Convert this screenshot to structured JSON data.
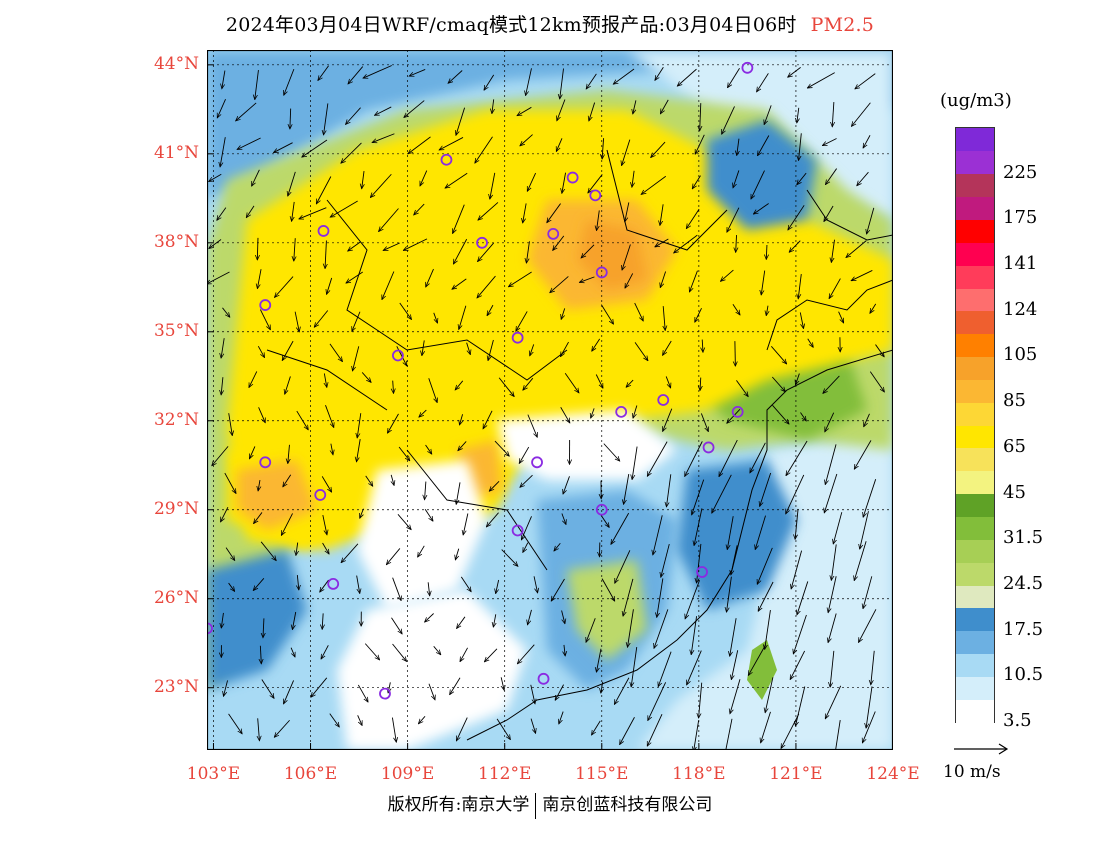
{
  "title": "2024年03月04日WRF/cmaq模式12km预报产品:03月04日06时",
  "pollutant": "PM2.5",
  "legend": {
    "unit": "(ug/m3)",
    "bins": [
      {
        "color": "#ffffff",
        "label": "3.5"
      },
      {
        "color": "#d4eefa",
        "label": ""
      },
      {
        "color": "#a8daf4",
        "label": "10.5"
      },
      {
        "color": "#6cb0e2",
        "label": ""
      },
      {
        "color": "#3f8ecc",
        "label": "17.5"
      },
      {
        "color": "#dfe9bf",
        "label": ""
      },
      {
        "color": "#bcd96a",
        "label": "24.5"
      },
      {
        "color": "#a7cf55",
        "label": ""
      },
      {
        "color": "#82be3a",
        "label": "31.5"
      },
      {
        "color": "#5fa226",
        "label": ""
      },
      {
        "color": "#f3f380",
        "label": "45"
      },
      {
        "color": "#f7e25a",
        "label": ""
      },
      {
        "color": "#ffe600",
        "label": "65"
      },
      {
        "color": "#fdd735",
        "label": ""
      },
      {
        "color": "#fbb733",
        "label": "85"
      },
      {
        "color": "#f7a22a",
        "label": ""
      },
      {
        "color": "#ff8000",
        "label": "105"
      },
      {
        "color": "#ef5f2f",
        "label": ""
      },
      {
        "color": "#fe6e6e",
        "label": "124"
      },
      {
        "color": "#ff3c5a",
        "label": ""
      },
      {
        "color": "#ff0050",
        "label": "141"
      },
      {
        "color": "#ff0000",
        "label": ""
      },
      {
        "color": "#c01a7e",
        "label": "175"
      },
      {
        "color": "#b4345a",
        "label": ""
      },
      {
        "color": "#9b30d4",
        "label": "225"
      },
      {
        "color": "#7f29d8",
        "label": ""
      }
    ]
  },
  "axes": {
    "lat_labels": [
      "44°N",
      "41°N",
      "38°N",
      "35°N",
      "32°N",
      "29°N",
      "26°N",
      "23°N"
    ],
    "lat_values": [
      44,
      41,
      38,
      35,
      32,
      29,
      26,
      23
    ],
    "lon_labels": [
      "103°E",
      "106°E",
      "109°E",
      "112°E",
      "115°E",
      "118°E",
      "121°E",
      "124°E"
    ],
    "lon_values": [
      103,
      106,
      109,
      112,
      115,
      118,
      121,
      124
    ],
    "lat_range": [
      20.9,
      44.5
    ],
    "lon_range": [
      102.8,
      124
    ]
  },
  "wind_scale_label": "10 m/s",
  "footer": {
    "left": "版权所有:南京大学",
    "right": "南京创蓝科技有限公司"
  },
  "cities": [
    {
      "lon": 119.5,
      "lat": 43.9
    },
    {
      "lon": 110.2,
      "lat": 40.8
    },
    {
      "lon": 114.1,
      "lat": 40.2
    },
    {
      "lon": 114.8,
      "lat": 39.6
    },
    {
      "lon": 106.4,
      "lat": 38.4
    },
    {
      "lon": 111.3,
      "lat": 38.0
    },
    {
      "lon": 113.5,
      "lat": 38.3
    },
    {
      "lon": 115.0,
      "lat": 37.0
    },
    {
      "lon": 104.6,
      "lat": 35.9
    },
    {
      "lon": 112.4,
      "lat": 34.8
    },
    {
      "lon": 108.7,
      "lat": 34.2
    },
    {
      "lon": 115.6,
      "lat": 32.3
    },
    {
      "lon": 116.9,
      "lat": 32.7
    },
    {
      "lon": 119.2,
      "lat": 32.3
    },
    {
      "lon": 118.3,
      "lat": 31.1
    },
    {
      "lon": 104.6,
      "lat": 30.6
    },
    {
      "lon": 113.0,
      "lat": 30.6
    },
    {
      "lon": 106.3,
      "lat": 29.5
    },
    {
      "lon": 112.4,
      "lat": 28.3
    },
    {
      "lon": 115.0,
      "lat": 29.0
    },
    {
      "lon": 118.1,
      "lat": 26.9
    },
    {
      "lon": 106.7,
      "lat": 26.5
    },
    {
      "lon": 102.8,
      "lat": 25.0
    },
    {
      "lon": 113.2,
      "lat": 23.3
    },
    {
      "lon": 108.3,
      "lat": 22.8
    }
  ]
}
